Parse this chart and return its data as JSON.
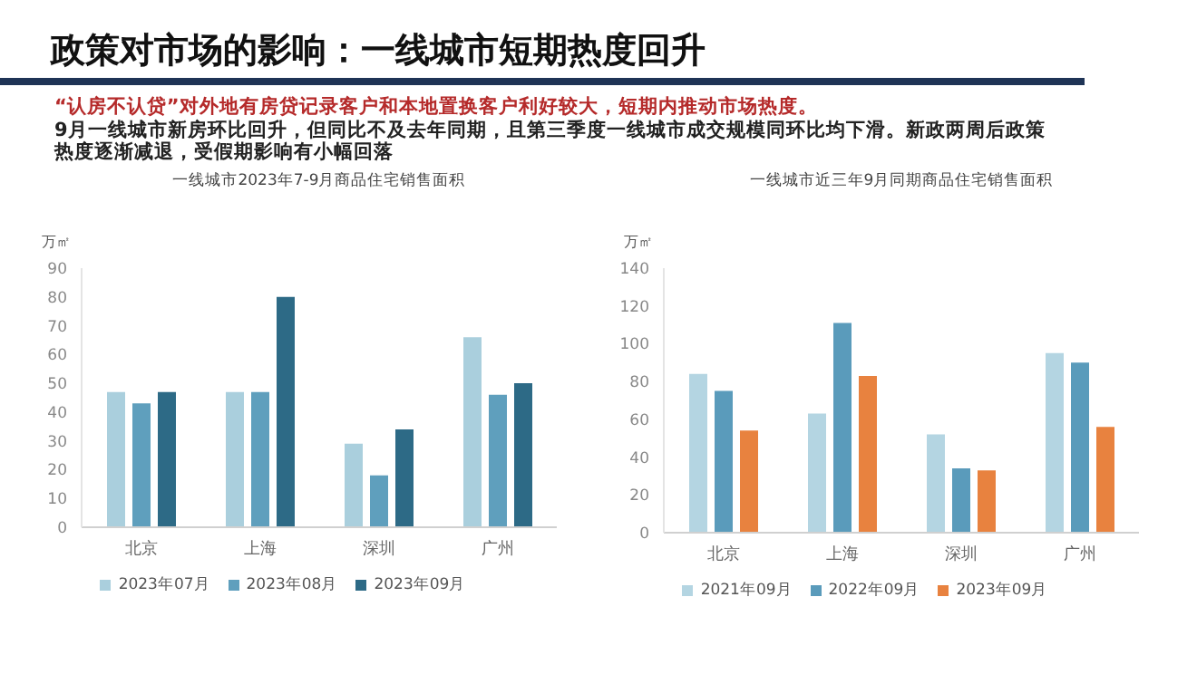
{
  "chart_data": [
    {
      "type": "other",
      "title": "政策对市场的影响：一线城市短期热度回升",
      "annotations": [
        "“认房不认贷”对外地有房贷记录客户和本地置换客户利好较大，短期内推动市场热度。",
        "9月一线城市新房环比回升，但同比不及去年同期，且第三季度一线城市成交规模同环比均下滑。新政两周后政策热度逐渐减退，受假期影响有小幅回落"
      ]
    },
    {
      "type": "bar",
      "title": "一线城市2023年7-9月商品住宅销售面积",
      "ylabel": "万㎡",
      "categories": [
        "北京",
        "上海",
        "深圳",
        "广州"
      ],
      "series": [
        {
          "name": "2023年07月",
          "color": "#aacfdd",
          "values": [
            47,
            47,
            29,
            66
          ]
        },
        {
          "name": "2023年08月",
          "color": "#5f9fbd",
          "values": [
            43,
            47,
            18,
            46
          ]
        },
        {
          "name": "2023年09月",
          "color": "#2d6a86",
          "values": [
            47,
            80,
            34,
            50
          ]
        }
      ],
      "ylim": [
        0,
        90
      ],
      "yticks": [
        0,
        10,
        20,
        30,
        40,
        50,
        60,
        70,
        80,
        90
      ],
      "legend": "bottom"
    },
    {
      "type": "bar",
      "title": "一线城市近三年9月同期商品住宅销售面积",
      "ylabel": "万㎡",
      "categories": [
        "北京",
        "上海",
        "深圳",
        "广州"
      ],
      "series": [
        {
          "name": "2021年09月",
          "color": "#b4d5e2",
          "values": [
            84,
            63,
            52,
            95
          ]
        },
        {
          "name": "2022年09月",
          "color": "#5a9bbb",
          "values": [
            75,
            111,
            34,
            90
          ]
        },
        {
          "name": "2023年09月",
          "color": "#e8823f",
          "values": [
            54,
            83,
            33,
            56
          ]
        }
      ],
      "ylim": [
        0,
        140
      ],
      "yticks": [
        0,
        20,
        40,
        60,
        80,
        100,
        120,
        140
      ],
      "legend": "bottom"
    }
  ]
}
